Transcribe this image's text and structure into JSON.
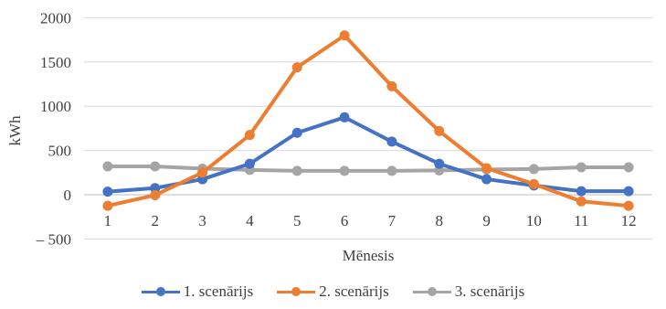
{
  "chart_data": {
    "type": "line",
    "title": "",
    "xlabel": "Mēnesis",
    "ylabel": "kWh",
    "categories": [
      "1",
      "2",
      "3",
      "4",
      "5",
      "6",
      "7",
      "8",
      "9",
      "10",
      "11",
      "12"
    ],
    "y_ticks": [
      -500,
      0,
      500,
      1000,
      1500,
      2000
    ],
    "y_tick_labels": [
      "– 500",
      "0",
      "500",
      "1000",
      "1500",
      "2000"
    ],
    "ylim": [
      -500,
      2000
    ],
    "grid": true,
    "legend_position": "bottom",
    "series": [
      {
        "name": "1. scenārijs",
        "color": "#4472C4",
        "values": [
          35,
          75,
          175,
          350,
          700,
          875,
          600,
          350,
          175,
          105,
          40,
          40
        ]
      },
      {
        "name": "2. scenārijs",
        "color": "#ED7D31",
        "values": [
          -125,
          -5,
          250,
          675,
          1440,
          1800,
          1225,
          720,
          300,
          120,
          -75,
          -125
        ]
      },
      {
        "name": "3. scenārijs",
        "color": "#A5A5A5",
        "values": [
          320,
          320,
          295,
          280,
          270,
          270,
          270,
          275,
          285,
          290,
          310,
          310
        ]
      }
    ]
  }
}
